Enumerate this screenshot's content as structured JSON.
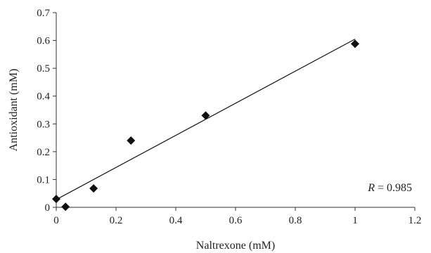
{
  "chart_data": {
    "type": "scatter",
    "title": "",
    "xlabel": "Naltrexone (mM)",
    "ylabel": "Antioxidant (mM)",
    "xlim": [
      0,
      1.2
    ],
    "ylim": [
      0,
      0.7
    ],
    "x_ticks": [
      0,
      0.2,
      0.4,
      0.6,
      0.8,
      1,
      1.2
    ],
    "x_tick_labels": [
      "0",
      "0.2",
      "0.4",
      "0.6",
      "0.8",
      "1",
      "1.2"
    ],
    "y_ticks": [
      0,
      0.1,
      0.2,
      0.3,
      0.4,
      0.5,
      0.6,
      0.7
    ],
    "y_tick_labels": [
      "0",
      "0.1",
      "0.2",
      "0.3",
      "0.4",
      "0.5",
      "0.6",
      "0.7"
    ],
    "grid": false,
    "legend": "none",
    "series": [
      {
        "marker": "diamond",
        "color": "#111111",
        "points": [
          {
            "x": 0,
            "y": 0.03
          },
          {
            "x": 0.031,
            "y": 0.002
          },
          {
            "x": 0.125,
            "y": 0.068
          },
          {
            "x": 0.25,
            "y": 0.24
          },
          {
            "x": 0.5,
            "y": 0.33
          },
          {
            "x": 1.0,
            "y": 0.588
          }
        ]
      }
    ],
    "trendline": {
      "color": "#111111",
      "points": [
        {
          "x": 0,
          "y": 0.028
        },
        {
          "x": 1.0,
          "y": 0.605
        }
      ]
    },
    "annotation": {
      "variable": "R",
      "rest": " = 0.985",
      "position": "bottom-right"
    }
  }
}
